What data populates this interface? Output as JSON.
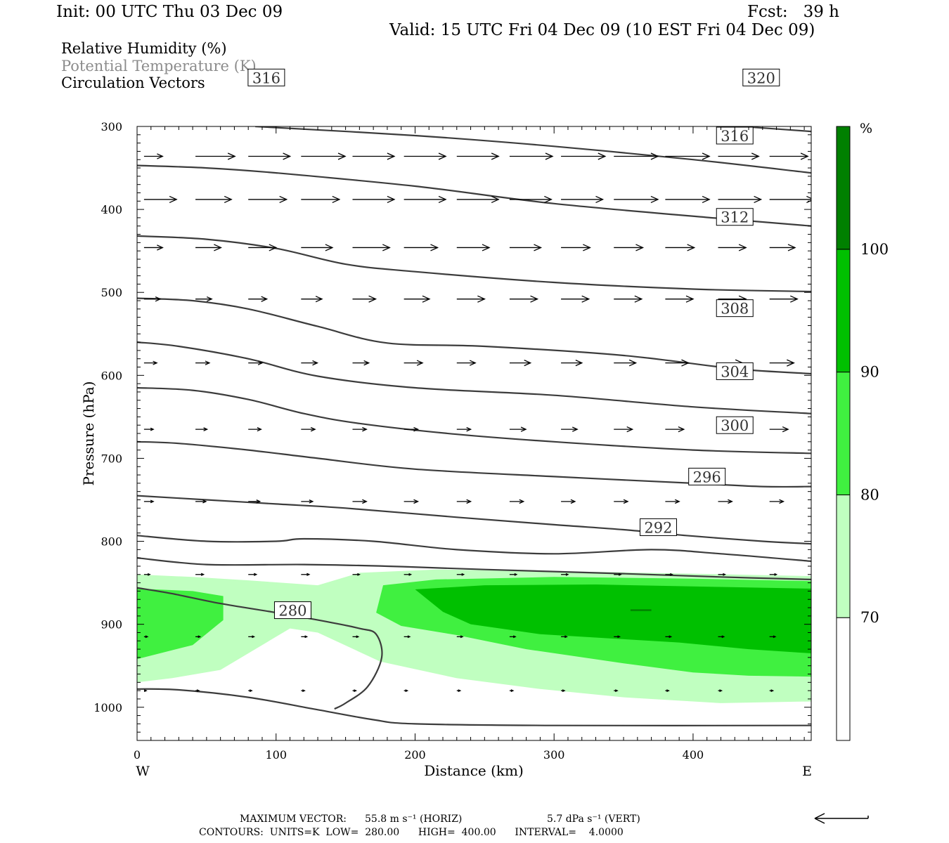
{
  "header": {
    "init": "Init: 00 UTC Thu 03 Dec 09",
    "fcst": "Fcst:   39 h",
    "valid": "Valid: 15 UTC Fri 04 Dec 09 (10 EST Fri 04 Dec 09)"
  },
  "legend_text": {
    "rh": "Relative Humidity (%)",
    "theta": "Potential Temperature (K)",
    "vectors": "Circulation Vectors"
  },
  "footer": {
    "max_vector_label": "MAXIMUM VECTOR:",
    "max_vector_horiz": "55.8 m s⁻¹ (HORIZ)",
    "max_vector_vert": "5.7 dPa s⁻¹ (VERT)",
    "contours": "CONTOURS:  UNITS=K  LOW=  280.00      HIGH=  400.00      INTERVAL=    4.0000"
  },
  "colors": {
    "rh_70_80": "#c0ffc0",
    "rh_80_90": "#40f040",
    "rh_90_100": "#00c000",
    "rh_100_plus": "#008000",
    "contour": "#3c3c3c"
  },
  "chart_data": {
    "type": "contour",
    "xlabel": "Distance (km)",
    "ylabel": "Pressure (hPa)",
    "xlim": [
      0,
      485
    ],
    "ylim": [
      1040,
      300
    ],
    "y_scale": "linear",
    "x_ticks": [
      "0",
      "100",
      "200",
      "300",
      "400"
    ],
    "y_ticks": [
      "300",
      "400",
      "500",
      "600",
      "700",
      "800",
      "900",
      "1000"
    ],
    "x_end_labels": {
      "left": "W",
      "right": "E"
    },
    "colorbar": {
      "unit": "%",
      "levels": [
        "70",
        "80",
        "90",
        "100"
      ],
      "colors": [
        "#ffffff",
        "#c0ffc0",
        "#40f040",
        "#00c000",
        "#008000"
      ]
    },
    "rh_fill": [
      {
        "level": "70-80",
        "color": "#c0ffc0",
        "polygon": [
          [
            0,
            840
          ],
          [
            40,
            843
          ],
          [
            80,
            847
          ],
          [
            130,
            853
          ],
          [
            160,
            838
          ],
          [
            215,
            834
          ],
          [
            300,
            836
          ],
          [
            400,
            839
          ],
          [
            485,
            842
          ],
          [
            485,
            993
          ],
          [
            420,
            995
          ],
          [
            350,
            988
          ],
          [
            290,
            978
          ],
          [
            230,
            965
          ],
          [
            175,
            945
          ],
          [
            130,
            910
          ],
          [
            110,
            905
          ],
          [
            85,
            930
          ],
          [
            60,
            955
          ],
          [
            25,
            965
          ],
          [
            0,
            970
          ]
        ]
      },
      {
        "level": "80-90",
        "color": "#40f040",
        "polygon": [
          [
            0,
            857
          ],
          [
            40,
            860
          ],
          [
            62,
            866
          ],
          [
            62,
            895
          ],
          [
            40,
            925
          ],
          [
            0,
            942
          ]
        ]
      },
      {
        "level": "80-90",
        "color": "#40f040",
        "polygon": [
          [
            177,
            853
          ],
          [
            215,
            846
          ],
          [
            300,
            843
          ],
          [
            400,
            845
          ],
          [
            485,
            848
          ],
          [
            485,
            963
          ],
          [
            440,
            962
          ],
          [
            400,
            958
          ],
          [
            350,
            947
          ],
          [
            280,
            930
          ],
          [
            230,
            913
          ],
          [
            190,
            902
          ],
          [
            172,
            886
          ]
        ]
      },
      {
        "level": "90-100",
        "color": "#00c000",
        "polygon": [
          [
            200,
            858
          ],
          [
            250,
            853
          ],
          [
            330,
            852
          ],
          [
            420,
            855
          ],
          [
            485,
            857
          ],
          [
            485,
            935
          ],
          [
            440,
            930
          ],
          [
            390,
            922
          ],
          [
            340,
            917
          ],
          [
            290,
            912
          ],
          [
            240,
            900
          ],
          [
            220,
            885
          ]
        ]
      },
      {
        "level": "100+",
        "color": "#008000",
        "polygon": [
          [
            355,
            882
          ],
          [
            370,
            882
          ],
          [
            370,
            884
          ],
          [
            355,
            884
          ]
        ]
      }
    ],
    "theta_contours": [
      {
        "level": 280,
        "label": "280",
        "label_at": [
          112,
          883
        ],
        "points": [
          [
            0,
            856
          ],
          [
            25,
            863
          ],
          [
            60,
            875
          ],
          [
            100,
            886
          ],
          [
            140,
            898
          ],
          [
            160,
            905
          ],
          [
            172,
            912
          ],
          [
            176,
            940
          ],
          [
            166,
            975
          ],
          [
            150,
            995
          ],
          [
            142,
            1002
          ]
        ]
      },
      {
        "level": 284,
        "label": "",
        "points": [
          [
            0,
            978
          ],
          [
            30,
            979
          ],
          [
            80,
            988
          ],
          [
            130,
            1003
          ],
          [
            170,
            1015
          ],
          [
            200,
            1020
          ],
          [
            300,
            1022
          ],
          [
            485,
            1022
          ]
        ]
      },
      {
        "level": 288,
        "label": "",
        "points": [
          [
            0,
            820
          ],
          [
            50,
            828
          ],
          [
            120,
            828
          ],
          [
            180,
            830
          ],
          [
            250,
            834
          ],
          [
            350,
            839
          ],
          [
            420,
            843
          ],
          [
            485,
            846
          ]
        ]
      },
      {
        "level": 290,
        "label": "",
        "points": [
          [
            0,
            793
          ],
          [
            50,
            800
          ],
          [
            100,
            800
          ],
          [
            120,
            797
          ],
          [
            170,
            800
          ],
          [
            230,
            810
          ],
          [
            300,
            815
          ],
          [
            370,
            810
          ],
          [
            420,
            815
          ],
          [
            485,
            824
          ]
        ]
      },
      {
        "level": 292,
        "label": "292",
        "label_at": [
          375,
          783
        ],
        "points": [
          [
            0,
            745
          ],
          [
            50,
            750
          ],
          [
            100,
            755
          ],
          [
            150,
            760
          ],
          [
            230,
            771
          ],
          [
            300,
            780
          ],
          [
            350,
            786
          ],
          [
            395,
            793
          ],
          [
            450,
            800
          ],
          [
            485,
            803
          ]
        ]
      },
      {
        "level": 296,
        "label": "296",
        "label_at": [
          410,
          722
        ],
        "points": [
          [
            0,
            680
          ],
          [
            30,
            682
          ],
          [
            80,
            690
          ],
          [
            130,
            700
          ],
          [
            200,
            713
          ],
          [
            300,
            722
          ],
          [
            400,
            730
          ],
          [
            450,
            734
          ],
          [
            485,
            734
          ]
        ]
      },
      {
        "level": 300,
        "label": "300",
        "label_at": [
          430,
          660
        ],
        "points": [
          [
            0,
            615
          ],
          [
            40,
            618
          ],
          [
            80,
            629
          ],
          [
            120,
            646
          ],
          [
            160,
            658
          ],
          [
            230,
            671
          ],
          [
            300,
            680
          ],
          [
            400,
            690
          ],
          [
            485,
            694
          ]
        ]
      },
      {
        "level": 304,
        "label": "304",
        "label_at": [
          430,
          595
        ],
        "points": [
          [
            0,
            560
          ],
          [
            30,
            565
          ],
          [
            80,
            580
          ],
          [
            130,
            601
          ],
          [
            200,
            615
          ],
          [
            300,
            624
          ],
          [
            400,
            638
          ],
          [
            485,
            646
          ]
        ]
      },
      {
        "level": 308,
        "label": "308",
        "label_at": [
          430,
          519
        ],
        "points": [
          [
            0,
            507
          ],
          [
            40,
            510
          ],
          [
            80,
            520
          ],
          [
            130,
            541
          ],
          [
            180,
            561
          ],
          [
            250,
            565
          ],
          [
            350,
            576
          ],
          [
            430,
            592
          ],
          [
            485,
            598
          ]
        ]
      },
      {
        "level": 312,
        "label": "312",
        "label_at": [
          430,
          409
        ],
        "points": [
          [
            0,
            432
          ],
          [
            50,
            436
          ],
          [
            100,
            447
          ],
          [
            150,
            466
          ],
          [
            200,
            475
          ],
          [
            300,
            488
          ],
          [
            400,
            496
          ],
          [
            485,
            499
          ]
        ]
      },
      {
        "level": 316,
        "label": "316",
        "label_at": [
          430,
          311
        ],
        "points": [
          [
            0,
            347
          ],
          [
            50,
            350
          ],
          [
            100,
            356
          ],
          [
            200,
            372
          ],
          [
            300,
            393
          ],
          [
            420,
            411
          ],
          [
            485,
            420
          ]
        ]
      },
      {
        "level": 316,
        "label": "316",
        "label_at": [
          93,
          241
        ],
        "points": []
      },
      {
        "level": 320,
        "label": "320",
        "label_at": [
          449,
          241
        ],
        "points": [
          [
            85,
            300
          ],
          [
            200,
            311
          ],
          [
            300,
            324
          ],
          [
            400,
            340
          ],
          [
            485,
            356
          ]
        ]
      },
      {
        "level": 324,
        "label": "",
        "points": [
          [
            435,
            300
          ],
          [
            485,
            306
          ]
        ]
      }
    ],
    "vectors": {
      "note": "horizontal-dominant circulation vectors (u in m/s, w in dPa/s); arrows point to +x (east)",
      "rows": [
        {
          "p": 336,
          "x": [
            5,
            42,
            80,
            118,
            155,
            192,
            230,
            268,
            305,
            343,
            380,
            418,
            455
          ],
          "u": [
            16,
            34,
            36,
            38,
            36,
            36,
            36,
            37,
            38,
            38,
            38,
            35,
            33
          ]
        },
        {
          "p": 388,
          "x": [
            5,
            42,
            80,
            118,
            155,
            192,
            230,
            268,
            305,
            343,
            380,
            418,
            455
          ],
          "u": [
            28,
            31,
            33,
            33,
            36,
            36,
            36,
            36,
            36,
            38,
            38,
            37,
            38
          ]
        },
        {
          "p": 446,
          "x": [
            5,
            42,
            80,
            118,
            155,
            192,
            230,
            268,
            305,
            343,
            380,
            418,
            455
          ],
          "u": [
            16,
            22,
            24,
            27,
            32,
            29,
            28,
            27,
            25,
            25,
            25,
            24,
            22
          ]
        },
        {
          "p": 508,
          "x": [
            5,
            42,
            80,
            118,
            155,
            192,
            230,
            268,
            305,
            343,
            380,
            418,
            455
          ],
          "u": [
            14,
            14,
            16,
            18,
            20,
            22,
            24,
            24,
            24,
            24,
            24,
            24,
            24
          ]
        },
        {
          "p": 585,
          "x": [
            5,
            42,
            80,
            118,
            155,
            192,
            230,
            268,
            305,
            343,
            380,
            418,
            455
          ],
          "u": [
            11,
            12,
            12,
            14,
            14,
            16,
            16,
            18,
            18,
            19,
            20,
            21,
            21
          ]
        },
        {
          "p": 665,
          "x": [
            5,
            42,
            80,
            118,
            155,
            192,
            230,
            268,
            305,
            343,
            380,
            418,
            455
          ],
          "u": [
            8,
            10,
            11,
            12,
            12,
            12,
            12,
            14,
            14,
            16,
            16,
            16,
            16
          ]
        },
        {
          "p": 752,
          "x": [
            5,
            42,
            80,
            118,
            155,
            192,
            230,
            268,
            305,
            343,
            380,
            418,
            455
          ],
          "u": [
            8,
            9,
            10,
            10,
            12,
            12,
            12,
            12,
            12,
            12,
            12,
            12,
            12
          ]
        },
        {
          "p": 840,
          "x": [
            5,
            42,
            80,
            118,
            155,
            192,
            230,
            268,
            305,
            343,
            380,
            418,
            455
          ],
          "u": [
            5,
            7,
            7,
            7,
            6,
            6,
            6,
            6,
            6,
            6,
            6,
            6,
            6
          ]
        },
        {
          "p": 915,
          "x": [
            5,
            42,
            80,
            118,
            155,
            192,
            230,
            268,
            305,
            343,
            380,
            418,
            455
          ],
          "u": [
            3,
            4,
            5,
            5,
            5,
            5,
            5,
            5,
            5,
            5,
            5,
            5,
            5
          ]
        },
        {
          "p": 980,
          "x": [
            5,
            42,
            80,
            118,
            155,
            192,
            230,
            268,
            305,
            343,
            380,
            418,
            455
          ],
          "u": [
            2,
            3,
            3,
            3,
            3,
            3,
            3,
            3,
            3,
            3,
            3,
            3,
            3
          ]
        }
      ]
    }
  }
}
